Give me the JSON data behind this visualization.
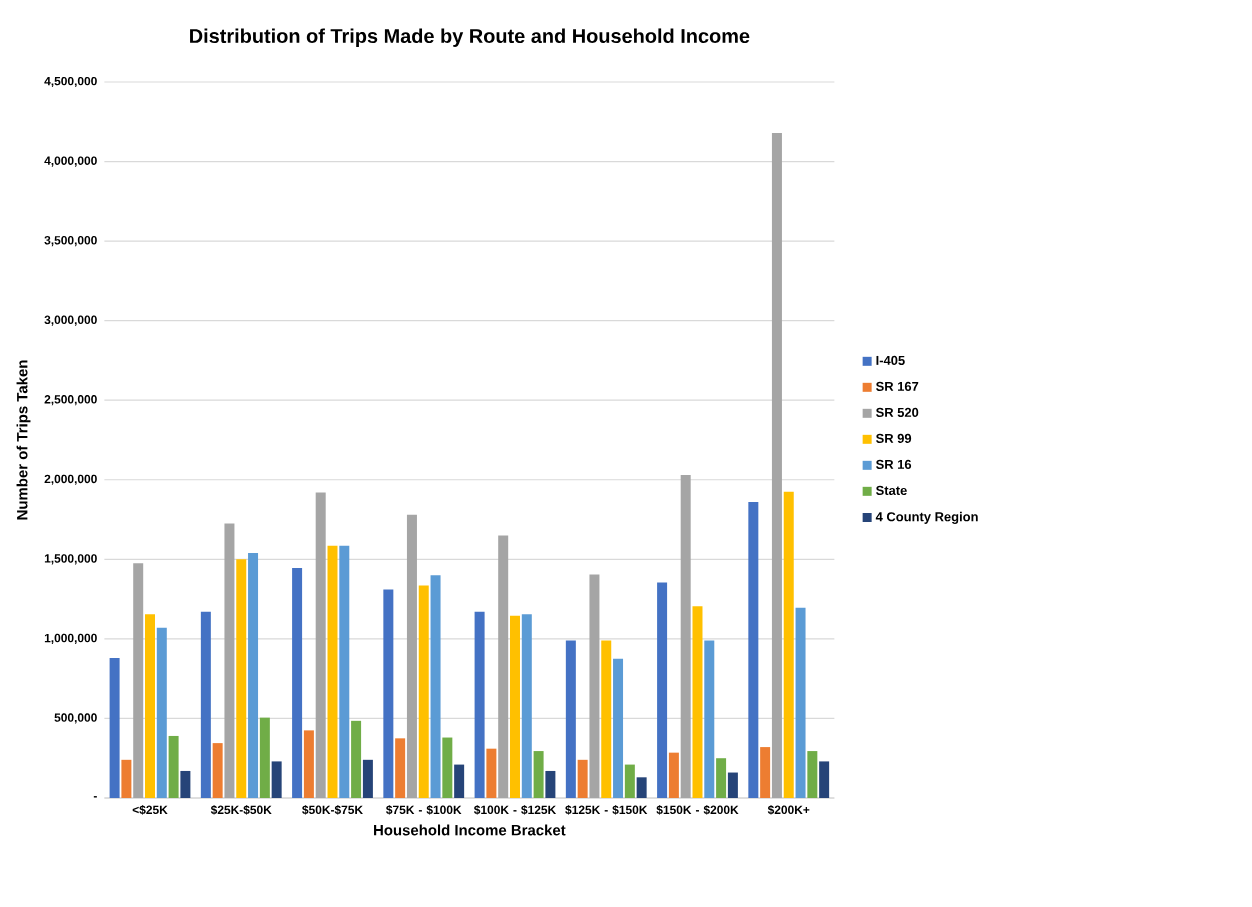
{
  "chart_data": {
    "type": "bar",
    "title": "Distribution of Trips Made by Route and Household Income",
    "xlabel": "Household Income Bracket",
    "ylabel": "Number of Trips Taken",
    "categories": [
      "<$25K",
      "$25K-$50K",
      "$50K-$75K",
      "$75K - $100K",
      "$100K - $125K",
      "$125K - $150K",
      "$150K - $200K",
      "$200K+"
    ],
    "series": [
      {
        "name": "I-405",
        "color": "#4472c4",
        "values": [
          880000,
          1170000,
          1445000,
          1310000,
          1170000,
          990000,
          1355000,
          1860000
        ]
      },
      {
        "name": "SR 167",
        "color": "#ed7d31",
        "values": [
          240000,
          345000,
          425000,
          375000,
          310000,
          240000,
          285000,
          320000
        ]
      },
      {
        "name": "SR 520",
        "color": "#a5a5a5",
        "values": [
          1475000,
          1725000,
          1920000,
          1780000,
          1650000,
          1405000,
          2030000,
          4180000
        ]
      },
      {
        "name": "SR 99",
        "color": "#ffc000",
        "values": [
          1155000,
          1500000,
          1585000,
          1335000,
          1145000,
          990000,
          1205000,
          1925000
        ]
      },
      {
        "name": "SR 16",
        "color": "#5b9bd5",
        "values": [
          1070000,
          1540000,
          1585000,
          1400000,
          1155000,
          875000,
          990000,
          1195000
        ]
      },
      {
        "name": "State",
        "color": "#70ad47",
        "values": [
          390000,
          505000,
          485000,
          380000,
          295000,
          210000,
          250000,
          295000
        ]
      },
      {
        "name": "4 County Region",
        "color": "#264478",
        "values": [
          170000,
          230000,
          240000,
          210000,
          170000,
          130000,
          160000,
          230000
        ]
      }
    ],
    "ylim": [
      0,
      4500000
    ],
    "yticks": [
      {
        "value": 0,
        "label": "-"
      },
      {
        "value": 500000,
        "label": "500,000"
      },
      {
        "value": 1000000,
        "label": "1,000,000"
      },
      {
        "value": 1500000,
        "label": "1,500,000"
      },
      {
        "value": 2000000,
        "label": "2,000,000"
      },
      {
        "value": 2500000,
        "label": "2,500,000"
      },
      {
        "value": 3000000,
        "label": "3,000,000"
      },
      {
        "value": 3500000,
        "label": "3,500,000"
      },
      {
        "value": 4000000,
        "label": "4,000,000"
      },
      {
        "value": 4500000,
        "label": "4,500,000"
      }
    ],
    "grid": "y",
    "legend": "right"
  }
}
